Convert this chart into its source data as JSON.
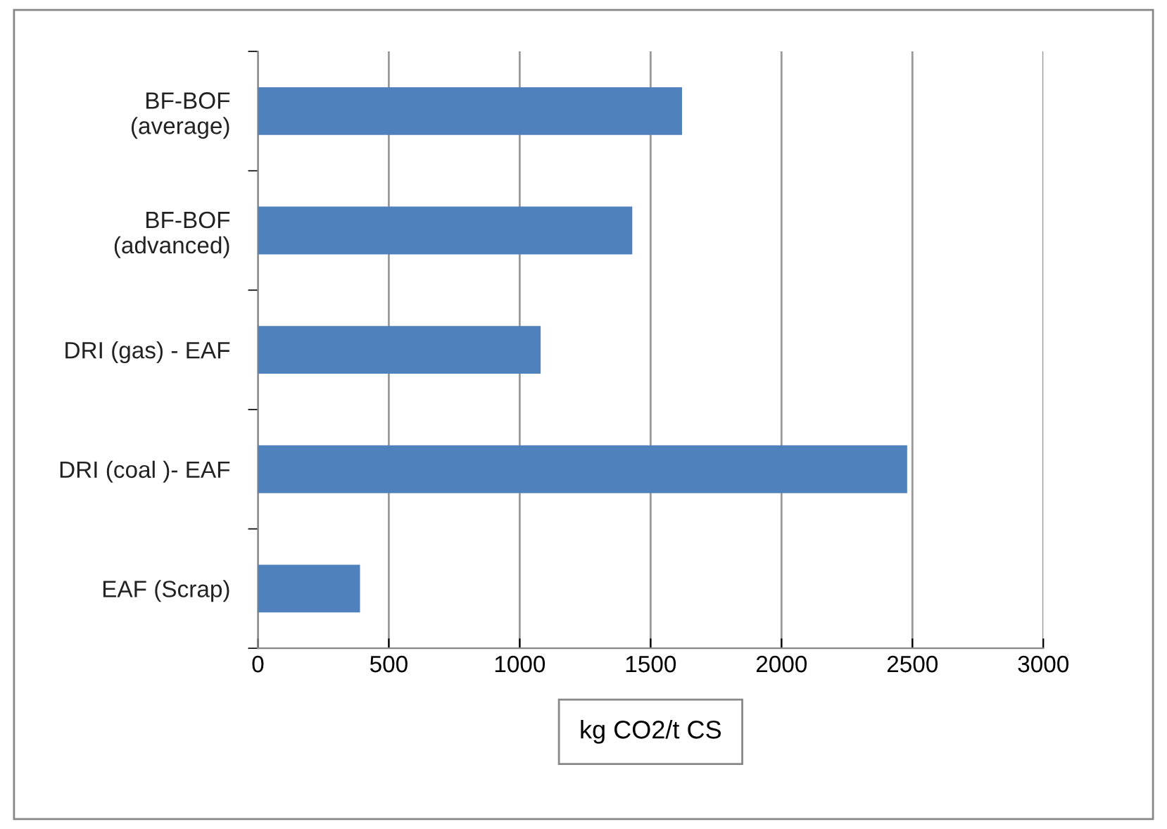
{
  "chart_data": {
    "type": "bar",
    "orientation": "horizontal",
    "categories": [
      "BF-BOF\n(average)",
      "BF-BOF\n(advanced)",
      "DRI (gas) - EAF",
      "DRI (coal )- EAF",
      "EAF (Scrap)"
    ],
    "values": [
      1620,
      1430,
      1080,
      2480,
      390
    ],
    "color": "#4f81bd",
    "xlabel": "kg CO2/t CS",
    "xlim": [
      0,
      3000
    ],
    "xticks": [
      0,
      500,
      1000,
      1500,
      2000,
      2500,
      3000
    ],
    "grid": "x"
  }
}
